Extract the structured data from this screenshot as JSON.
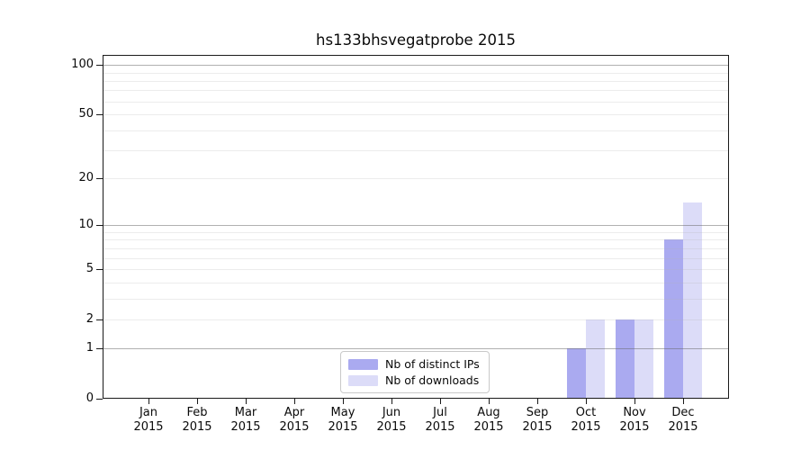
{
  "chart_data": {
    "type": "bar",
    "title": "hs133bhsvegatprobe 2015",
    "categories": [
      "Jan",
      "Feb",
      "Mar",
      "Apr",
      "May",
      "Jun",
      "Jul",
      "Aug",
      "Sep",
      "Oct",
      "Nov",
      "Dec"
    ],
    "category_year": "2015",
    "series": [
      {
        "name": "Nb of distinct IPs",
        "color": "#aaaaf0",
        "values": [
          0,
          0,
          0,
          0,
          0,
          0,
          0,
          0,
          0,
          1,
          2,
          8
        ]
      },
      {
        "name": "Nb of downloads",
        "color": "#dcdcf8",
        "values": [
          0,
          0,
          0,
          0,
          0,
          0,
          0,
          0,
          0,
          2,
          2,
          14
        ]
      }
    ],
    "y_scale": "log1p",
    "y_ticks": [
      0,
      1,
      2,
      5,
      10,
      20,
      50,
      100
    ],
    "y_major_gridlines": [
      1,
      10,
      100
    ],
    "y_minor_gridlines": [
      2,
      3,
      4,
      5,
      6,
      7,
      8,
      9,
      20,
      30,
      40,
      50,
      60,
      70,
      80,
      90
    ],
    "ylim": [
      0,
      115
    ],
    "grid": "on",
    "legend_position": "bottom-center"
  },
  "colors": {
    "bar_distinct_ips": "#aaaaf0",
    "bar_downloads": "#dcdcf8",
    "major_grid": "#b0b0b0",
    "minor_grid": "#e8e8e8",
    "frame": "#1a1a1a",
    "text": "#0a0a0a",
    "legend_border": "#c9c9c9"
  }
}
